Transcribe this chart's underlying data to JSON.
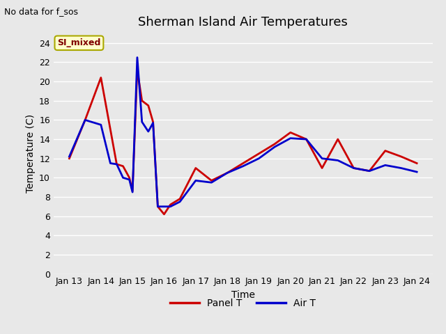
{
  "title": "Sherman Island Air Temperatures",
  "subtitle": "No data for f_sos",
  "xlabel": "Time",
  "ylabel": "Temperature (C)",
  "ylim": [
    0,
    25
  ],
  "yticks": [
    0,
    2,
    4,
    6,
    8,
    10,
    12,
    14,
    16,
    18,
    20,
    22,
    24
  ],
  "x_labels": [
    "Jan 13",
    "Jan 14",
    "Jan 15",
    "Jan 16",
    "Jan 17",
    "Jan 18",
    "Jan 19",
    "Jan 20",
    "Jan 21",
    "Jan 22",
    "Jan 23",
    "Jan 24"
  ],
  "panel_t_x": [
    0,
    0.5,
    1.0,
    1.3,
    1.5,
    1.7,
    1.9,
    2.0,
    2.15,
    2.3,
    2.5,
    2.65,
    2.8,
    3.0,
    3.2,
    3.5,
    4.0,
    4.5,
    5.0,
    5.5,
    6.0,
    6.5,
    7.0,
    7.5,
    8.0,
    8.5,
    9.0,
    9.5,
    10.0,
    10.5,
    11.0
  ],
  "panel_t_y": [
    12.0,
    16.0,
    20.4,
    15.0,
    11.4,
    11.2,
    10.0,
    8.6,
    21.2,
    18.0,
    17.5,
    15.8,
    7.0,
    6.2,
    7.2,
    7.8,
    11.0,
    9.7,
    10.5,
    11.5,
    12.5,
    13.5,
    14.7,
    14.0,
    11.0,
    14.0,
    11.0,
    10.7,
    12.8,
    12.2,
    11.5
  ],
  "air_t_x": [
    0,
    0.5,
    1.0,
    1.3,
    1.5,
    1.7,
    1.9,
    2.0,
    2.15,
    2.3,
    2.5,
    2.65,
    2.8,
    3.0,
    3.2,
    3.5,
    4.0,
    4.5,
    5.0,
    5.5,
    6.0,
    6.5,
    7.0,
    7.5,
    8.0,
    8.5,
    9.0,
    9.5,
    10.0,
    10.5,
    11.0
  ],
  "air_t_y": [
    12.2,
    16.0,
    15.5,
    11.5,
    11.4,
    10.0,
    9.8,
    8.5,
    22.5,
    15.8,
    14.8,
    15.7,
    7.0,
    7.0,
    7.0,
    7.5,
    9.7,
    9.5,
    10.5,
    11.2,
    12.0,
    13.2,
    14.1,
    14.0,
    12.0,
    11.8,
    11.0,
    10.7,
    11.3,
    11.0,
    10.6
  ],
  "panel_color": "#cc0000",
  "air_color": "#0000cc",
  "plot_bg": "#e8e8e8",
  "fig_bg": "#e8e8e8",
  "legend_label_panel": "Panel T",
  "legend_label_air": "Air T",
  "annotation_text": "SI_mixed",
  "annotation_bg": "#ffffcc",
  "annotation_border": "#aaa800",
  "line_width": 2.0,
  "title_fontsize": 13,
  "axis_label_fontsize": 10,
  "tick_fontsize": 9,
  "subtitle_fontsize": 9
}
